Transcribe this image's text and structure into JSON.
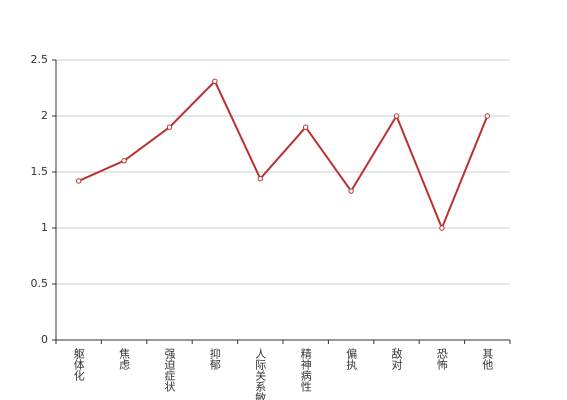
{
  "chart_data": {
    "type": "line",
    "categories": [
      "躯体化",
      "焦虑",
      "强迫症状",
      "抑郁",
      "人际关系敏感",
      "精神病性",
      "偏执",
      "敌对",
      "恐怖",
      "其他"
    ],
    "values": [
      1.42,
      1.6,
      1.9,
      2.31,
      1.44,
      1.9,
      1.33,
      2.0,
      1.0,
      2.0
    ],
    "color": "#b83232",
    "ylim": [
      0,
      2.5
    ],
    "yticks": [
      0,
      0.5,
      1,
      1.5,
      2,
      2.5
    ],
    "grid": true
  }
}
